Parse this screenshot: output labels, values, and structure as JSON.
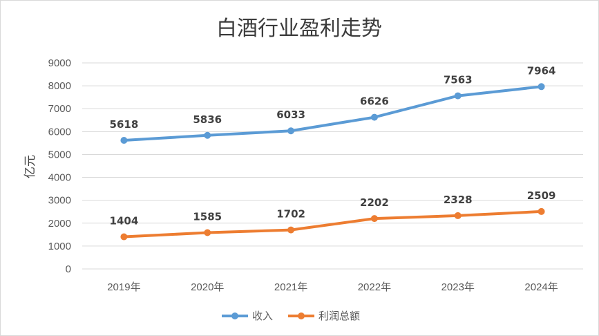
{
  "chart_data": {
    "type": "line",
    "title": "白酒行业盈利走势",
    "ylabel": "亿元",
    "xlabel": "",
    "categories": [
      "2019年",
      "2020年",
      "2021年",
      "2022年",
      "2023年",
      "2024年"
    ],
    "ylim": [
      0,
      9000
    ],
    "yticks": [
      0,
      1000,
      2000,
      3000,
      4000,
      5000,
      6000,
      7000,
      8000,
      9000
    ],
    "grid": true,
    "legend_position": "bottom",
    "series": [
      {
        "name": "收入",
        "color": "#5b9bd5",
        "values": [
          5618,
          5836,
          6033,
          6626,
          7563,
          7964
        ]
      },
      {
        "name": "利润总额",
        "color": "#ed7d31",
        "values": [
          1404,
          1585,
          1702,
          2202,
          2328,
          2509
        ]
      }
    ]
  }
}
